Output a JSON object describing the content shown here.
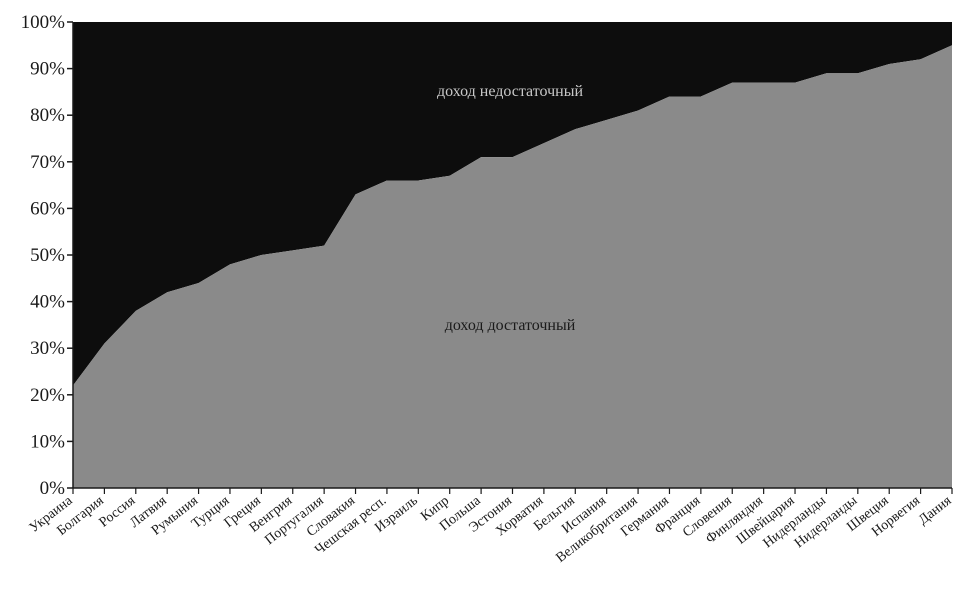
{
  "chart_data": {
    "type": "area",
    "stacked_percent": true,
    "categories": [
      "Украина",
      "Болгария",
      "Россия",
      "Латвия",
      "Румыния",
      "Турция",
      "Греция",
      "Венгрия",
      "Португалия",
      "Словакия",
      "Чешская респ.",
      "Израиль",
      "Кипр",
      "Польша",
      "Эстония",
      "Хорватия",
      "Бельгия",
      "Испания",
      "Великобритания",
      "Германия",
      "Франция",
      "Словения",
      "Финляндия",
      "Швейцария",
      "Нидерланды",
      "Нидерланды",
      "Швеция",
      "Норвегия",
      "Дания"
    ],
    "series": [
      {
        "name": "доход достаточный",
        "color": "#8a8a8a",
        "values": [
          22,
          31,
          38,
          42,
          44,
          48,
          50,
          51,
          52,
          63,
          66,
          66,
          67,
          71,
          71,
          74,
          77,
          79,
          81,
          84,
          84,
          87,
          87,
          87,
          89,
          89,
          91,
          92,
          95
        ]
      },
      {
        "name": "доход недостаточный",
        "color": "#0d0d0d",
        "values": [
          78,
          69,
          62,
          58,
          56,
          52,
          50,
          49,
          48,
          37,
          34,
          34,
          33,
          29,
          29,
          26,
          23,
          21,
          19,
          16,
          16,
          13,
          13,
          13,
          11,
          11,
          9,
          8,
          5
        ]
      }
    ],
    "ylim": [
      0,
      100
    ],
    "y_ticks": [
      "0%",
      "10%",
      "20%",
      "30%",
      "40%",
      "50%",
      "60%",
      "70%",
      "80%",
      "90%",
      "100%"
    ],
    "y_tick_values": [
      0,
      10,
      20,
      30,
      40,
      50,
      60,
      70,
      80,
      90,
      100
    ],
    "annotations": [
      "доход недостаточный",
      "доход достаточный"
    ]
  }
}
